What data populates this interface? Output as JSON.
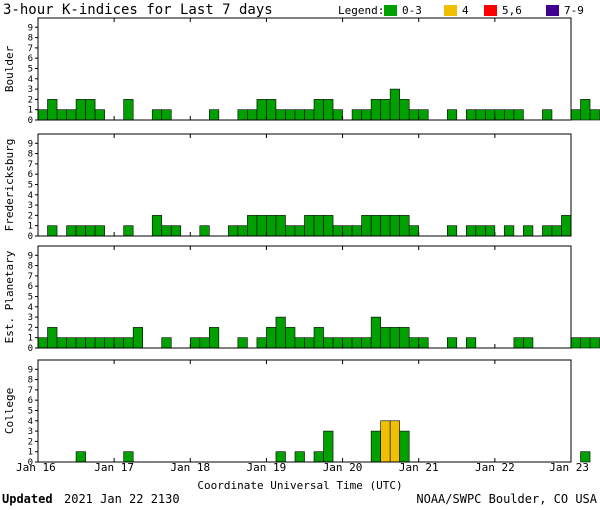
{
  "title": "3-hour K-indices for Last 7 days",
  "legend": {
    "label": "Legend:",
    "items": [
      {
        "label": "0-3",
        "color": "#00a000"
      },
      {
        "label": "4",
        "color": "#f0c000"
      },
      {
        "label": "5,6",
        "color": "#ff0000"
      },
      {
        "label": "7-9",
        "color": "#400090"
      }
    ]
  },
  "footer": {
    "updated_label": "Updated",
    "updated_value": "2021 Jan 22 2130",
    "source": "NOAA/SWPC Boulder, CO USA"
  },
  "chart_data": {
    "type": "bar",
    "xlabel": "Coordinate Universal Time (UTC)",
    "x_tick_labels": [
      "Jan 16",
      "Jan 17",
      "Jan 18",
      "Jan 19",
      "Jan 20",
      "Jan 21",
      "Jan 22",
      "Jan 23"
    ],
    "ylim": [
      0,
      9
    ],
    "y_ticks": [
      0,
      1,
      2,
      3,
      4,
      5,
      6,
      7,
      8,
      9
    ],
    "intervals_per_day": 8,
    "color_scale": [
      {
        "range": [
          0,
          3
        ],
        "color": "#00a000"
      },
      {
        "range": [
          4,
          4
        ],
        "color": "#f0c000"
      },
      {
        "range": [
          5,
          6
        ],
        "color": "#ff0000"
      },
      {
        "range": [
          7,
          9
        ],
        "color": "#400090"
      }
    ],
    "series": [
      {
        "name": "Boulder",
        "values": [
          1,
          2,
          1,
          1,
          2,
          2,
          1,
          0,
          0,
          2,
          0,
          0,
          1,
          1,
          0,
          0,
          0,
          0,
          1,
          0,
          0,
          1,
          1,
          2,
          2,
          1,
          1,
          1,
          1,
          2,
          2,
          1,
          0,
          1,
          1,
          2,
          2,
          3,
          2,
          1,
          1,
          0,
          0,
          1,
          0,
          1,
          1,
          1,
          1,
          1,
          1,
          0,
          0,
          1,
          0,
          0,
          1,
          2,
          1,
          0
        ]
      },
      {
        "name": "Fredericksburg",
        "values": [
          0,
          1,
          0,
          1,
          1,
          1,
          1,
          0,
          0,
          1,
          0,
          0,
          2,
          1,
          1,
          0,
          0,
          1,
          0,
          0,
          1,
          1,
          2,
          2,
          2,
          2,
          1,
          1,
          2,
          2,
          2,
          1,
          1,
          1,
          2,
          2,
          2,
          2,
          2,
          1,
          0,
          0,
          0,
          1,
          0,
          1,
          1,
          1,
          0,
          1,
          0,
          1,
          0,
          1,
          1,
          2
        ]
      },
      {
        "name": "Est. Planetary",
        "values": [
          1,
          2,
          1,
          1,
          1,
          1,
          1,
          1,
          1,
          1,
          2,
          0,
          0,
          1,
          0,
          0,
          1,
          1,
          2,
          0,
          0,
          1,
          0,
          1,
          2,
          3,
          2,
          1,
          1,
          2,
          1,
          1,
          1,
          1,
          1,
          3,
          2,
          2,
          2,
          1,
          1,
          0,
          0,
          1,
          0,
          1,
          0,
          0,
          0,
          0,
          1,
          1,
          0,
          0,
          0,
          0,
          1,
          1,
          1,
          0
        ]
      },
      {
        "name": "College",
        "values": [
          0,
          0,
          0,
          0,
          1,
          0,
          0,
          0,
          0,
          1,
          0,
          0,
          0,
          0,
          0,
          0,
          0,
          0,
          0,
          0,
          0,
          0,
          0,
          0,
          0,
          1,
          0,
          1,
          0,
          1,
          3,
          0,
          0,
          0,
          0,
          3,
          4,
          4,
          3,
          0,
          0,
          0,
          0,
          0,
          0,
          0,
          0,
          0,
          0,
          0,
          0,
          0,
          0,
          0,
          0,
          0,
          0,
          1,
          0,
          0
        ]
      }
    ]
  }
}
